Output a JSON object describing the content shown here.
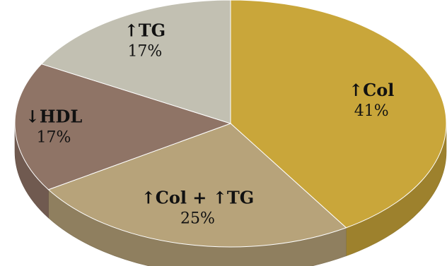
{
  "chart_data": {
    "type": "pie",
    "style": "3d",
    "title": "",
    "slices": [
      {
        "label": "↑Col",
        "value": 41,
        "value_label": "41%",
        "color": "#c9a63a"
      },
      {
        "label": "↑Col + ↑TG",
        "value": 25,
        "value_label": "25%",
        "color": "#b7a37a"
      },
      {
        "label": "↓HDL",
        "value": 17,
        "value_label": "17%",
        "color": "#8f7466"
      },
      {
        "label": "↑TG",
        "value": 17,
        "value_label": "17%",
        "color": "#c2c0b2"
      }
    ]
  }
}
